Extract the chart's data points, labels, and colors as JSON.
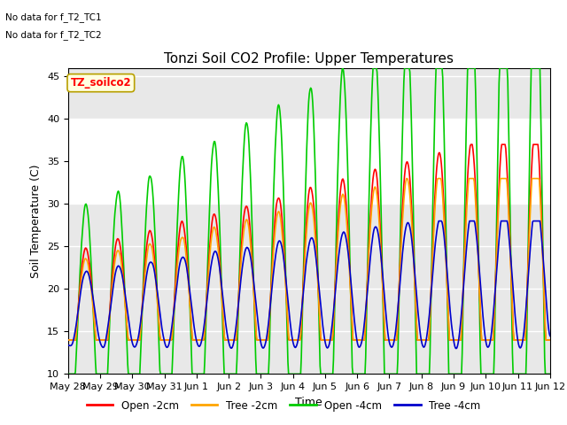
{
  "title": "Tonzi Soil CO2 Profile: Upper Temperatures",
  "ylabel": "Soil Temperature (C)",
  "xlabel": "Time",
  "no_data_text1": "No data for f_T2_TC1",
  "no_data_text2": "No data for f_T2_TC2",
  "file_label": "TZ_soilco2",
  "ylim": [
    10,
    46
  ],
  "yticks": [
    10,
    15,
    20,
    25,
    30,
    35,
    40,
    45
  ],
  "xticklabels": [
    "May 28",
    "May 29",
    "May 30",
    "May 31",
    "Jun 1",
    "Jun 2",
    "Jun 3",
    "Jun 4",
    "Jun 5",
    "Jun 6",
    "Jun 7",
    "Jun 8",
    "Jun 9",
    "Jun 10",
    "Jun 11",
    "Jun 12"
  ],
  "colors": {
    "open_2cm": "#ff0000",
    "tree_2cm": "#ffa500",
    "open_4cm": "#00cc00",
    "tree_4cm": "#0000cc"
  },
  "legend_labels": [
    "Open -2cm",
    "Tree -2cm",
    "Open -4cm",
    "Tree -4cm"
  ],
  "background_color": "#e8e8e8",
  "white_band": [
    30,
    40
  ],
  "title_fontsize": 11,
  "label_fontsize": 9,
  "tick_fontsize": 8
}
